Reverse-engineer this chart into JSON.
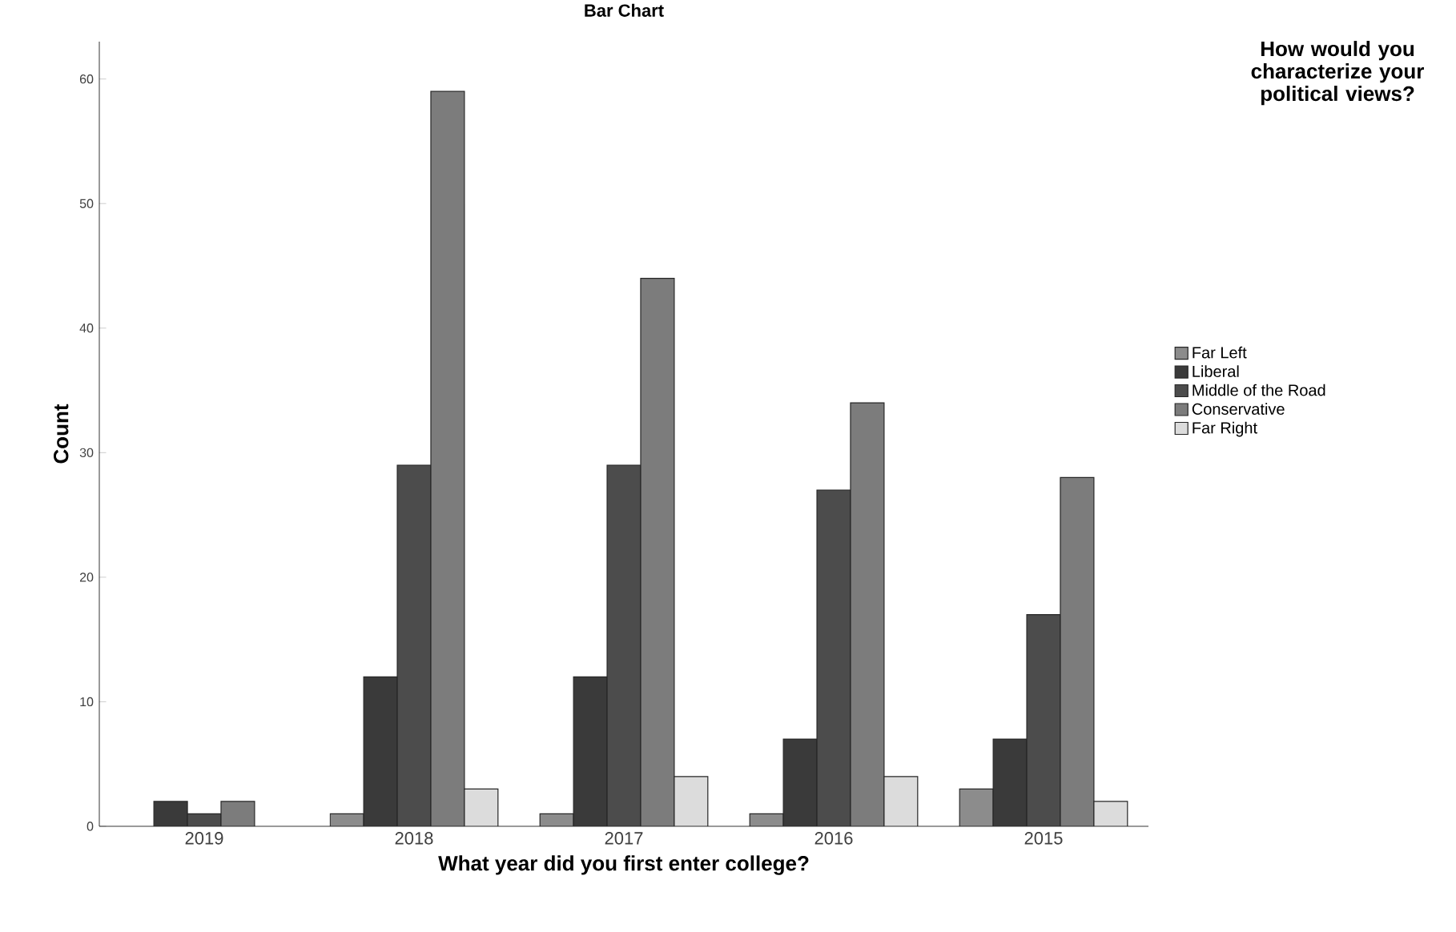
{
  "chart_data": {
    "type": "bar",
    "title": "Bar Chart",
    "xlabel": "What year did you first enter college?",
    "ylabel": "Count",
    "legend_title": "How would you characterize your political views?",
    "categories": [
      "2019",
      "2018",
      "2017",
      "2016",
      "2015"
    ],
    "series": [
      {
        "name": "Far Left",
        "color": "#8c8c8c",
        "values": [
          null,
          1,
          1,
          1,
          3
        ]
      },
      {
        "name": "Liberal",
        "color": "#3a3a3a",
        "values": [
          2,
          12,
          12,
          7,
          7
        ]
      },
      {
        "name": "Middle of the Road",
        "color": "#4c4c4c",
        "values": [
          1,
          29,
          29,
          27,
          17
        ]
      },
      {
        "name": "Conservative",
        "color": "#7c7c7c",
        "values": [
          2,
          59,
          44,
          34,
          28
        ]
      },
      {
        "name": "Far Right",
        "color": "#dcdcdc",
        "values": [
          null,
          3,
          4,
          4,
          2
        ]
      }
    ],
    "ylim": [
      0,
      63
    ],
    "yticks": [
      0,
      10,
      20,
      30,
      40,
      50,
      60
    ],
    "grid": false,
    "legend": "right"
  }
}
